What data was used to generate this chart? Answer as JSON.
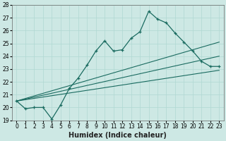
{
  "xlabel": "Humidex (Indice chaleur)",
  "x_values": [
    0,
    1,
    2,
    3,
    4,
    5,
    6,
    7,
    8,
    9,
    10,
    11,
    12,
    13,
    14,
    15,
    16,
    17,
    18,
    19,
    20,
    21,
    22,
    23
  ],
  "y_main": [
    20.5,
    19.9,
    20.0,
    20.0,
    19.1,
    20.2,
    21.5,
    22.3,
    23.3,
    24.4,
    25.2,
    24.4,
    24.5,
    25.4,
    25.9,
    27.5,
    26.9,
    26.6,
    25.8,
    25.1,
    24.4,
    23.6,
    23.2,
    23.2
  ],
  "trend_lines": [
    {
      "x0": 0,
      "y0": 20.5,
      "x1": 23,
      "y1": 24.0
    },
    {
      "x0": 0,
      "y0": 20.5,
      "x1": 23,
      "y1": 22.9
    },
    {
      "x0": 0,
      "y0": 20.5,
      "x1": 23,
      "y1": 25.1
    }
  ],
  "bg_color": "#cde8e4",
  "grid_color": "#b0d8d2",
  "line_color": "#1a6b60",
  "ylim": [
    19,
    28
  ],
  "xlim": [
    -0.5,
    23.5
  ],
  "yticks": [
    19,
    20,
    21,
    22,
    23,
    24,
    25,
    26,
    27,
    28
  ],
  "xticks": [
    0,
    1,
    2,
    3,
    4,
    5,
    6,
    7,
    8,
    9,
    10,
    11,
    12,
    13,
    14,
    15,
    16,
    17,
    18,
    19,
    20,
    21,
    22,
    23
  ],
  "tick_fontsize": 5.5,
  "xlabel_fontsize": 7
}
